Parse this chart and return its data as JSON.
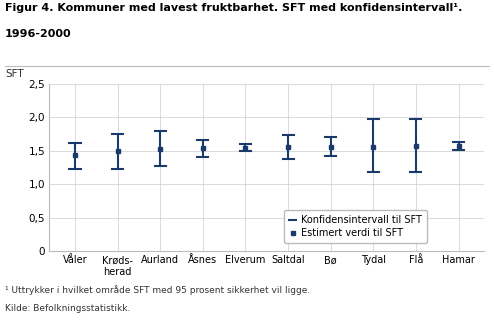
{
  "title_line1": "Figur 4. Kommuner med lavest fruktbarhet. SFT med konfidensintervall¹.",
  "title_line2": "1996-2000",
  "ylabel": "SFT",
  "footnote1": "¹ Uttrykker i hvilket område SFT med 95 prosent sikkerhet vil ligge.",
  "footnote2": "Kilde: Befolkningsstatistikk.",
  "categories": [
    "Våler",
    "Krøds-\nherad",
    "Aurland",
    "Åsnes",
    "Elverum",
    "Saltdal",
    "Bø",
    "Tydal",
    "Flå",
    "Hamar"
  ],
  "estimates": [
    1.44,
    1.49,
    1.52,
    1.54,
    1.54,
    1.56,
    1.56,
    1.56,
    1.57,
    1.57
  ],
  "ci_lower": [
    1.22,
    1.23,
    1.27,
    1.4,
    1.49,
    1.37,
    1.42,
    1.18,
    1.18,
    1.51
  ],
  "ci_upper": [
    1.61,
    1.75,
    1.8,
    1.66,
    1.6,
    1.73,
    1.71,
    1.98,
    1.98,
    1.63
  ],
  "ylim": [
    0,
    2.5
  ],
  "yticks": [
    0,
    0.5,
    1.0,
    1.5,
    2.0,
    2.5
  ],
  "ytick_labels": [
    "0",
    "0,5",
    "1,0",
    "1,5",
    "2,0",
    "2,5"
  ],
  "color_ci": "#1a3a6b",
  "color_est": "#1a3a6b",
  "legend_label_ci": "Konfidensintervall til SFT",
  "legend_label_est": "Estimert verdi til SFT",
  "background_color": "#ffffff"
}
